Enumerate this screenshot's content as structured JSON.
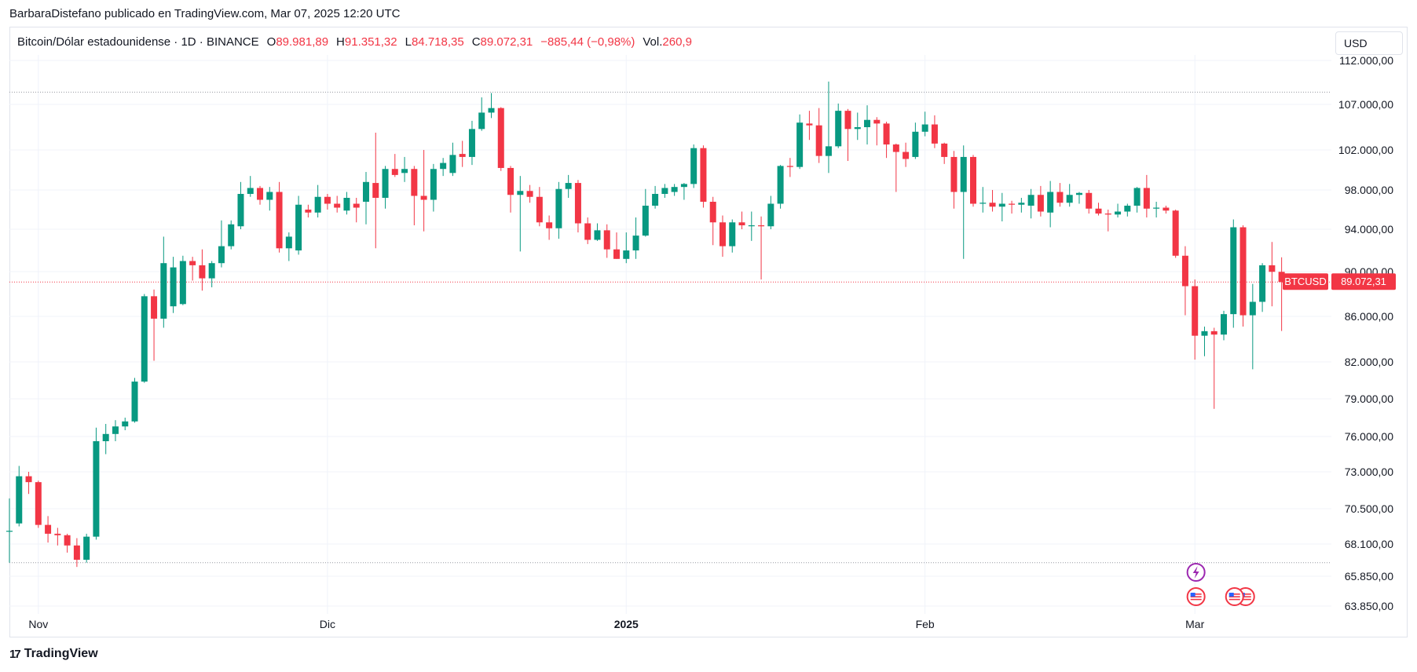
{
  "caption": "BarbaraDistefano publicado en TradingView.com, Mar 07, 2025 12:20 UTC",
  "legend": {
    "symbol": "Bitcoin/Dólar estadounidense · 1D · BINANCE",
    "o_label": "O",
    "o_value": "89.981,89",
    "h_label": "H",
    "h_value": "91.351,32",
    "l_label": "L",
    "l_value": "84.718,35",
    "c_label": "C",
    "c_value": "89.072,31",
    "change": "−885,44 (−0,98%)",
    "vol_label": "Vol.",
    "vol_value": "260,9"
  },
  "currency": "USD",
  "price_tag": {
    "ticker": "BTCUSD",
    "value": "89.072,31"
  },
  "footer": {
    "logo_mark": "17",
    "brand": "TradingView"
  },
  "colors": {
    "up": "#089981",
    "down": "#f23645",
    "grid": "#f0f3fa",
    "event": "#9c27b0"
  },
  "chart_data": {
    "type": "candlestick",
    "symbol": "BTCUSD",
    "interval": "1D",
    "y_ticks": [
      {
        "value": 112000,
        "label": "112.000,00"
      },
      {
        "value": 107000,
        "label": "107.000,00"
      },
      {
        "value": 102000,
        "label": "102.000,00"
      },
      {
        "value": 98000,
        "label": "98.000,00"
      },
      {
        "value": 94000,
        "label": "94.000,00"
      },
      {
        "value": 90000,
        "label": "90.000,00"
      },
      {
        "value": 86000,
        "label": "86.000,00"
      },
      {
        "value": 82000,
        "label": "82.000,00"
      },
      {
        "value": 79000,
        "label": "79.000,00"
      },
      {
        "value": 76000,
        "label": "76.000,00"
      },
      {
        "value": 73000,
        "label": "73.000,00"
      },
      {
        "value": 70500,
        "label": "70.500,00"
      },
      {
        "value": 68100,
        "label": "68.100,00"
      },
      {
        "value": 65850,
        "label": "65.850,00"
      },
      {
        "value": 63850,
        "label": "63.850,00"
      }
    ],
    "x_labels": [
      {
        "index": 3,
        "label": "Nov",
        "bold": false
      },
      {
        "index": 33,
        "label": "Dic",
        "bold": false
      },
      {
        "index": 64,
        "label": "2025",
        "bold": true
      },
      {
        "index": 95,
        "label": "Feb",
        "bold": false
      },
      {
        "index": 123,
        "label": "Mar",
        "bold": false
      }
    ],
    "range_high_line": 108400,
    "range_low_line": 66800,
    "last_price": 89072.31,
    "candles": [
      {
        "o": 69000,
        "h": 71200,
        "l": 66800,
        "c": 69000
      },
      {
        "o": 69500,
        "h": 73500,
        "l": 69300,
        "c": 72700
      },
      {
        "o": 72700,
        "h": 73000,
        "l": 71500,
        "c": 72300
      },
      {
        "o": 72300,
        "h": 72400,
        "l": 69200,
        "c": 69400
      },
      {
        "o": 69400,
        "h": 70000,
        "l": 68200,
        "c": 68800
      },
      {
        "o": 68800,
        "h": 69200,
        "l": 68000,
        "c": 68700
      },
      {
        "o": 68700,
        "h": 68800,
        "l": 67500,
        "c": 68000
      },
      {
        "o": 68000,
        "h": 68500,
        "l": 66500,
        "c": 67000
      },
      {
        "o": 67000,
        "h": 68800,
        "l": 66800,
        "c": 68600
      },
      {
        "o": 68600,
        "h": 76700,
        "l": 68400,
        "c": 75600
      },
      {
        "o": 75600,
        "h": 77000,
        "l": 74500,
        "c": 76200
      },
      {
        "o": 76200,
        "h": 77300,
        "l": 75600,
        "c": 76800
      },
      {
        "o": 76800,
        "h": 77500,
        "l": 76500,
        "c": 77200
      },
      {
        "o": 77200,
        "h": 80700,
        "l": 77100,
        "c": 80400
      },
      {
        "o": 80400,
        "h": 88000,
        "l": 80300,
        "c": 87800
      },
      {
        "o": 87800,
        "h": 88400,
        "l": 82100,
        "c": 85800
      },
      {
        "o": 85800,
        "h": 93300,
        "l": 85000,
        "c": 90800
      },
      {
        "o": 86900,
        "h": 91400,
        "l": 86300,
        "c": 90400
      },
      {
        "o": 87100,
        "h": 91500,
        "l": 87000,
        "c": 91000
      },
      {
        "o": 91000,
        "h": 91400,
        "l": 89200,
        "c": 90600
      },
      {
        "o": 90600,
        "h": 92100,
        "l": 88300,
        "c": 89400
      },
      {
        "o": 89400,
        "h": 91000,
        "l": 88600,
        "c": 90800
      },
      {
        "o": 90800,
        "h": 94900,
        "l": 90400,
        "c": 92400
      },
      {
        "o": 92400,
        "h": 94900,
        "l": 92100,
        "c": 94500
      },
      {
        "o": 94300,
        "h": 98800,
        "l": 94000,
        "c": 97600
      },
      {
        "o": 97600,
        "h": 99400,
        "l": 97300,
        "c": 98200
      },
      {
        "o": 98200,
        "h": 98400,
        "l": 96500,
        "c": 97000
      },
      {
        "o": 97000,
        "h": 98300,
        "l": 95900,
        "c": 97800
      },
      {
        "o": 97800,
        "h": 98800,
        "l": 91800,
        "c": 92200
      },
      {
        "o": 92200,
        "h": 93700,
        "l": 91000,
        "c": 93300
      },
      {
        "o": 92000,
        "h": 97400,
        "l": 91600,
        "c": 96500
      },
      {
        "o": 96000,
        "h": 96500,
        "l": 95200,
        "c": 95700
      },
      {
        "o": 95700,
        "h": 98500,
        "l": 95200,
        "c": 97300
      },
      {
        "o": 97300,
        "h": 97600,
        "l": 96000,
        "c": 96600
      },
      {
        "o": 96600,
        "h": 97400,
        "l": 95700,
        "c": 96200
      },
      {
        "o": 95900,
        "h": 97800,
        "l": 95500,
        "c": 97200
      },
      {
        "o": 96600,
        "h": 97200,
        "l": 94700,
        "c": 96200
      },
      {
        "o": 96800,
        "h": 99800,
        "l": 94500,
        "c": 98800
      },
      {
        "o": 98700,
        "h": 103900,
        "l": 92200,
        "c": 97200
      },
      {
        "o": 97200,
        "h": 100400,
        "l": 96100,
        "c": 100100
      },
      {
        "o": 100100,
        "h": 101600,
        "l": 99300,
        "c": 99500
      },
      {
        "o": 99700,
        "h": 101300,
        "l": 98800,
        "c": 100100
      },
      {
        "o": 100100,
        "h": 100400,
        "l": 94400,
        "c": 97400
      },
      {
        "o": 97400,
        "h": 102000,
        "l": 93800,
        "c": 97000
      },
      {
        "o": 97000,
        "h": 100600,
        "l": 95800,
        "c": 100100
      },
      {
        "o": 100100,
        "h": 101200,
        "l": 99400,
        "c": 100700
      },
      {
        "o": 99700,
        "h": 102800,
        "l": 99400,
        "c": 101500
      },
      {
        "o": 101600,
        "h": 103000,
        "l": 100300,
        "c": 101300
      },
      {
        "o": 101300,
        "h": 105200,
        "l": 100500,
        "c": 104300
      },
      {
        "o": 104300,
        "h": 107800,
        "l": 104100,
        "c": 106100
      },
      {
        "o": 106100,
        "h": 108300,
        "l": 105500,
        "c": 106600
      },
      {
        "o": 106600,
        "h": 106700,
        "l": 99900,
        "c": 100200
      },
      {
        "o": 100200,
        "h": 100400,
        "l": 95700,
        "c": 97500
      },
      {
        "o": 97500,
        "h": 99400,
        "l": 91900,
        "c": 97900
      },
      {
        "o": 97900,
        "h": 98500,
        "l": 96700,
        "c": 97300
      },
      {
        "o": 97300,
        "h": 98300,
        "l": 94300,
        "c": 94700
      },
      {
        "o": 94700,
        "h": 95400,
        "l": 93000,
        "c": 94100
      },
      {
        "o": 94100,
        "h": 98800,
        "l": 93100,
        "c": 98100
      },
      {
        "o": 98100,
        "h": 99500,
        "l": 97200,
        "c": 98700
      },
      {
        "o": 98700,
        "h": 99000,
        "l": 93700,
        "c": 94600
      },
      {
        "o": 94600,
        "h": 95200,
        "l": 92600,
        "c": 93000
      },
      {
        "o": 93000,
        "h": 94600,
        "l": 92900,
        "c": 93900
      },
      {
        "o": 93900,
        "h": 94500,
        "l": 91300,
        "c": 92100
      },
      {
        "o": 92100,
        "h": 93700,
        "l": 91200,
        "c": 91200
      },
      {
        "o": 91200,
        "h": 93700,
        "l": 90800,
        "c": 92000
      },
      {
        "o": 92000,
        "h": 95200,
        "l": 91200,
        "c": 93400
      },
      {
        "o": 93400,
        "h": 98100,
        "l": 93300,
        "c": 96400
      },
      {
        "o": 96400,
        "h": 98400,
        "l": 96100,
        "c": 97600
      },
      {
        "o": 97600,
        "h": 98600,
        "l": 97200,
        "c": 98200
      },
      {
        "o": 97800,
        "h": 98600,
        "l": 97400,
        "c": 98300
      },
      {
        "o": 98300,
        "h": 98700,
        "l": 97000,
        "c": 98600
      },
      {
        "o": 98600,
        "h": 102600,
        "l": 98200,
        "c": 102200
      },
      {
        "o": 102200,
        "h": 102500,
        "l": 96200,
        "c": 96800
      },
      {
        "o": 96800,
        "h": 97300,
        "l": 92500,
        "c": 94700
      },
      {
        "o": 94700,
        "h": 95400,
        "l": 91400,
        "c": 92400
      },
      {
        "o": 92400,
        "h": 95000,
        "l": 91800,
        "c": 94700
      },
      {
        "o": 94700,
        "h": 95800,
        "l": 94000,
        "c": 94400
      },
      {
        "o": 94400,
        "h": 95800,
        "l": 92900,
        "c": 94400
      },
      {
        "o": 94400,
        "h": 95300,
        "l": 89300,
        "c": 94300
      },
      {
        "o": 94300,
        "h": 97400,
        "l": 94000,
        "c": 96600
      },
      {
        "o": 96600,
        "h": 100500,
        "l": 96100,
        "c": 100400
      },
      {
        "o": 100400,
        "h": 101200,
        "l": 99300,
        "c": 100300
      },
      {
        "o": 100300,
        "h": 105900,
        "l": 100100,
        "c": 105000
      },
      {
        "o": 104900,
        "h": 106300,
        "l": 103100,
        "c": 104700
      },
      {
        "o": 104700,
        "h": 106600,
        "l": 100700,
        "c": 101400
      },
      {
        "o": 101400,
        "h": 109600,
        "l": 99700,
        "c": 102400
      },
      {
        "o": 102400,
        "h": 107100,
        "l": 102200,
        "c": 106300
      },
      {
        "o": 106300,
        "h": 106500,
        "l": 100900,
        "c": 104300
      },
      {
        "o": 104300,
        "h": 106100,
        "l": 103100,
        "c": 104500
      },
      {
        "o": 104500,
        "h": 106900,
        "l": 102600,
        "c": 105300
      },
      {
        "o": 105300,
        "h": 105600,
        "l": 102500,
        "c": 104900
      },
      {
        "o": 104900,
        "h": 105100,
        "l": 101200,
        "c": 102600
      },
      {
        "o": 102600,
        "h": 102700,
        "l": 97800,
        "c": 101800
      },
      {
        "o": 101800,
        "h": 102800,
        "l": 100300,
        "c": 101100
      },
      {
        "o": 101300,
        "h": 105000,
        "l": 101100,
        "c": 104000
      },
      {
        "o": 104000,
        "h": 106200,
        "l": 103500,
        "c": 104800
      },
      {
        "o": 104800,
        "h": 105800,
        "l": 102200,
        "c": 102700
      },
      {
        "o": 102700,
        "h": 102800,
        "l": 100600,
        "c": 101300
      },
      {
        "o": 101300,
        "h": 101900,
        "l": 96100,
        "c": 97800
      },
      {
        "o": 97800,
        "h": 102500,
        "l": 91200,
        "c": 101300
      },
      {
        "o": 101300,
        "h": 101500,
        "l": 96300,
        "c": 96600
      },
      {
        "o": 96600,
        "h": 98300,
        "l": 95700,
        "c": 96700
      },
      {
        "o": 96700,
        "h": 98000,
        "l": 95800,
        "c": 96300
      },
      {
        "o": 96300,
        "h": 97700,
        "l": 94800,
        "c": 96600
      },
      {
        "o": 96600,
        "h": 96900,
        "l": 95600,
        "c": 96500
      },
      {
        "o": 96500,
        "h": 97200,
        "l": 95700,
        "c": 96700
      },
      {
        "o": 96400,
        "h": 98100,
        "l": 95100,
        "c": 97500
      },
      {
        "o": 97500,
        "h": 98400,
        "l": 95300,
        "c": 95800
      },
      {
        "o": 95700,
        "h": 98900,
        "l": 94200,
        "c": 97800
      },
      {
        "o": 97800,
        "h": 98700,
        "l": 96300,
        "c": 96700
      },
      {
        "o": 96700,
        "h": 98600,
        "l": 96300,
        "c": 97500
      },
      {
        "o": 97500,
        "h": 97800,
        "l": 96600,
        "c": 97700
      },
      {
        "o": 97700,
        "h": 98000,
        "l": 95600,
        "c": 96100
      },
      {
        "o": 96100,
        "h": 96700,
        "l": 95400,
        "c": 95600
      },
      {
        "o": 95600,
        "h": 96000,
        "l": 93800,
        "c": 95500
      },
      {
        "o": 95500,
        "h": 96600,
        "l": 95200,
        "c": 95800
      },
      {
        "o": 95800,
        "h": 96600,
        "l": 95300,
        "c": 96400
      },
      {
        "o": 96400,
        "h": 98300,
        "l": 95700,
        "c": 98200
      },
      {
        "o": 98200,
        "h": 99500,
        "l": 95200,
        "c": 96100
      },
      {
        "o": 96100,
        "h": 96800,
        "l": 95200,
        "c": 96200
      },
      {
        "o": 96200,
        "h": 96400,
        "l": 95600,
        "c": 95900
      },
      {
        "o": 95900,
        "h": 96000,
        "l": 91300,
        "c": 91500
      },
      {
        "o": 91500,
        "h": 92400,
        "l": 86100,
        "c": 88700
      },
      {
        "o": 88700,
        "h": 89300,
        "l": 82200,
        "c": 84300
      },
      {
        "o": 84300,
        "h": 85100,
        "l": 82500,
        "c": 84700
      },
      {
        "o": 84700,
        "h": 85000,
        "l": 78200,
        "c": 84400
      },
      {
        "o": 84400,
        "h": 86500,
        "l": 83900,
        "c": 86200
      },
      {
        "o": 86200,
        "h": 95000,
        "l": 85000,
        "c": 94200
      },
      {
        "o": 94200,
        "h": 94400,
        "l": 85100,
        "c": 86100
      },
      {
        "o": 86100,
        "h": 88900,
        "l": 81400,
        "c": 87300
      },
      {
        "o": 87300,
        "h": 90800,
        "l": 86400,
        "c": 90600
      },
      {
        "o": 90600,
        "h": 92800,
        "l": 86900,
        "c": 89981.89
      },
      {
        "o": 89981.89,
        "h": 91351.32,
        "l": 84718.35,
        "c": 89072.31
      }
    ],
    "events": [
      {
        "index": 121,
        "kind": "lightning"
      },
      {
        "index": 121,
        "kind": "us-flag"
      },
      {
        "index": 125,
        "kind": "us-flag-double"
      }
    ]
  }
}
